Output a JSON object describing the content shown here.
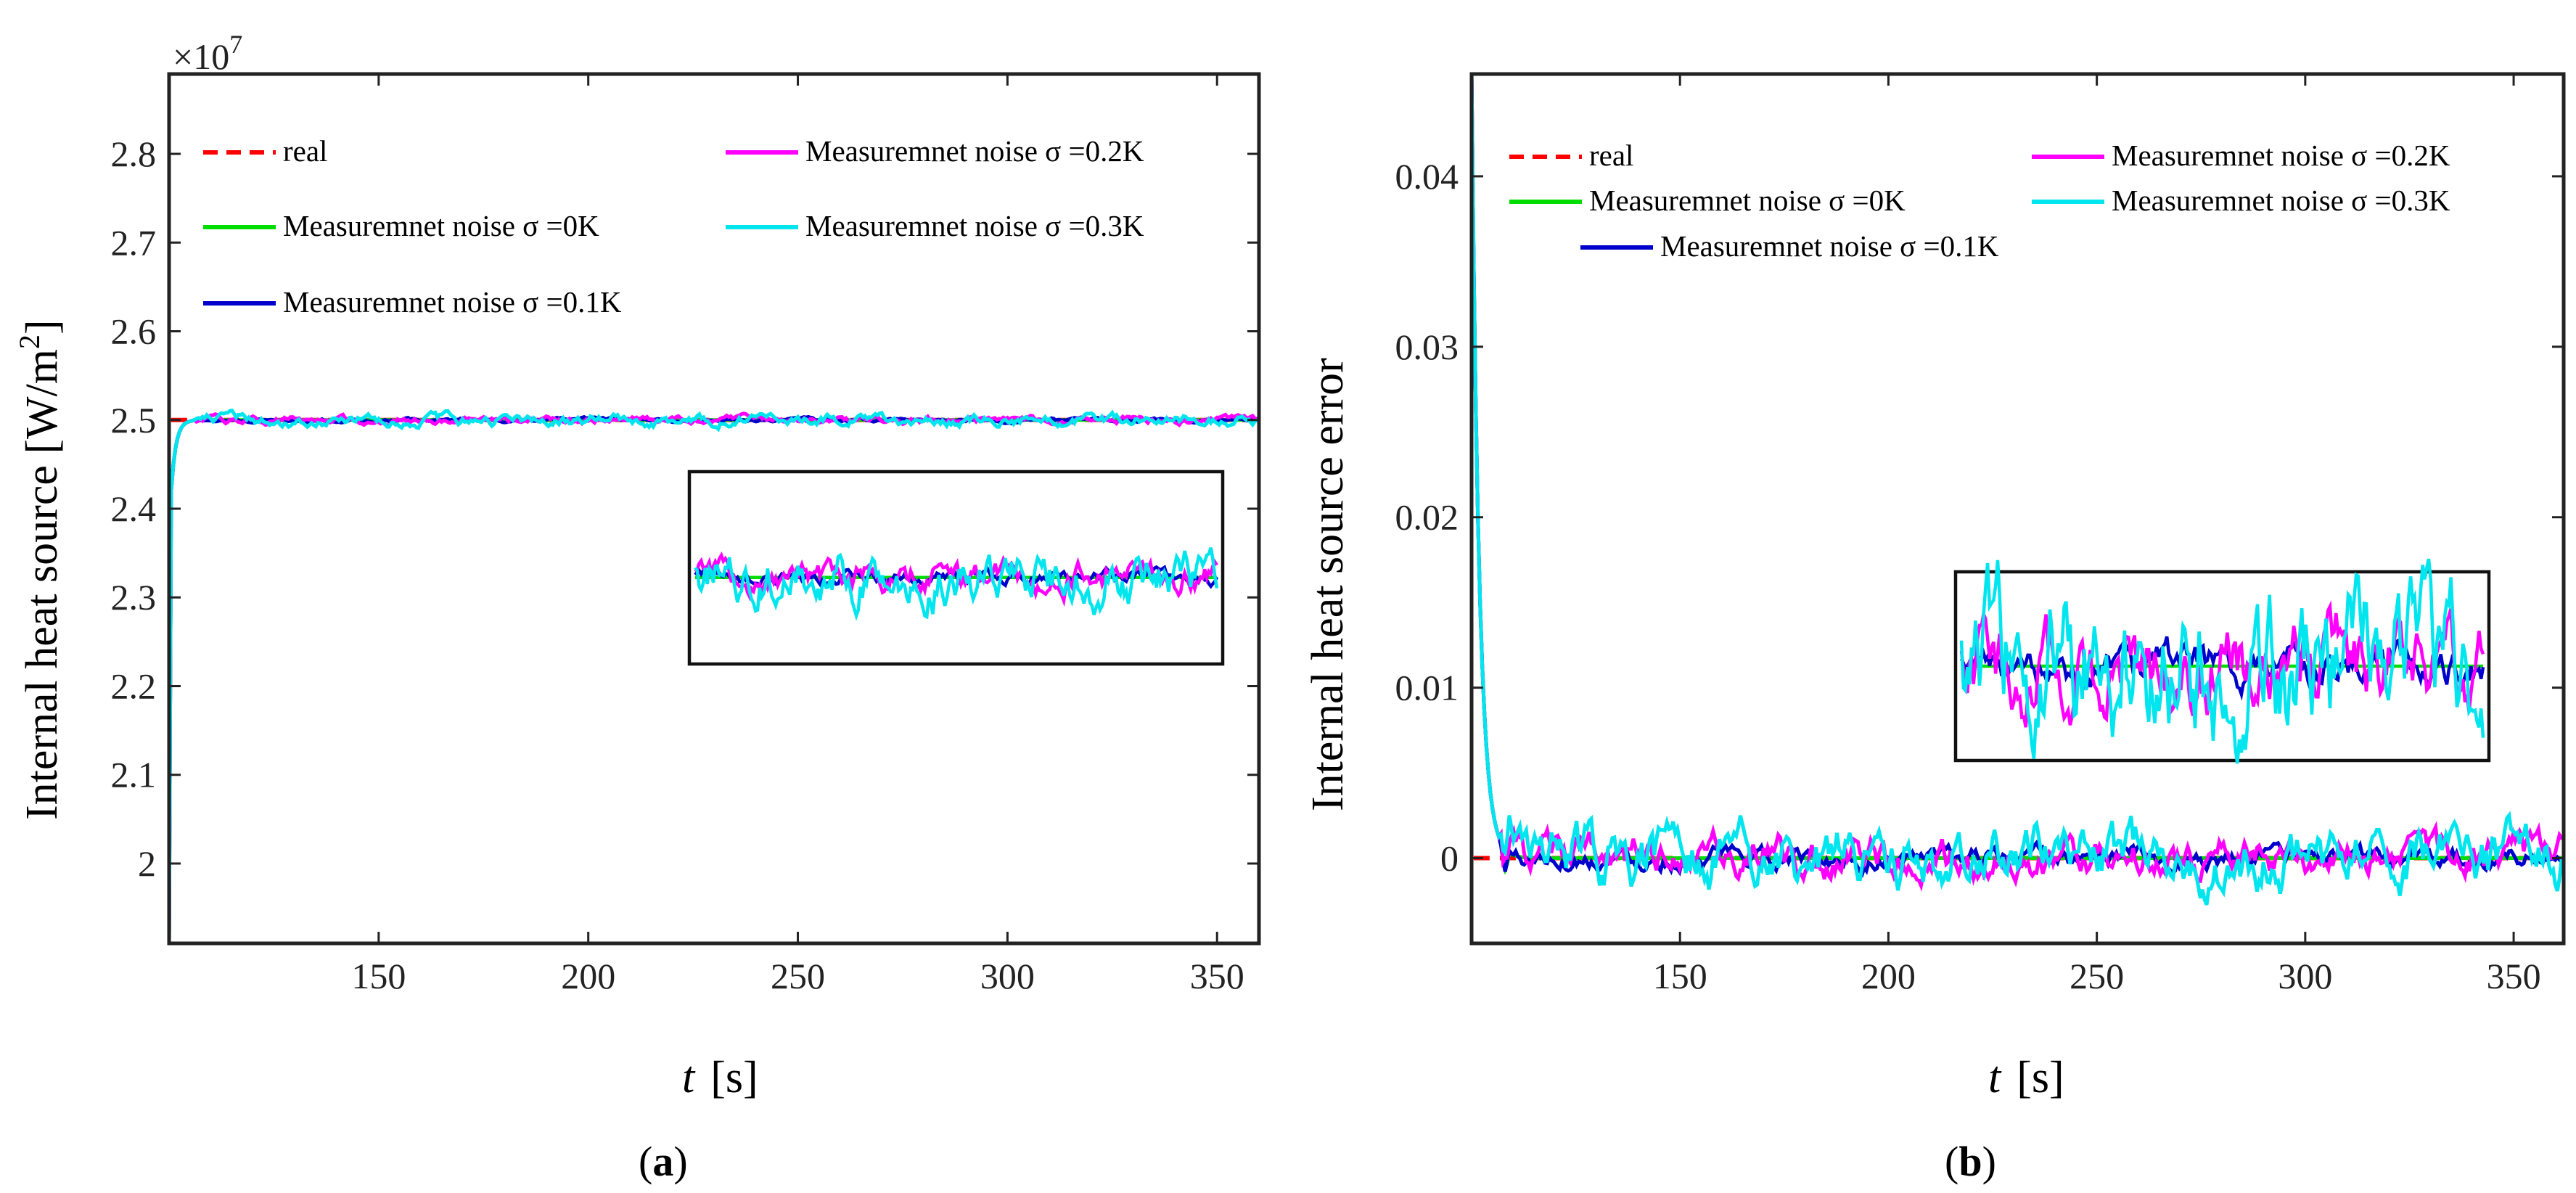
{
  "figure": {
    "panels": [
      {
        "label_open": "(",
        "label_letter": "a",
        "label_close": ")"
      },
      {
        "label_open": "(",
        "label_letter": "b",
        "label_close": ")"
      }
    ]
  },
  "chart_data": [
    {
      "type": "line",
      "panel": "a",
      "title": "",
      "xlabel_var": "t",
      "xlabel_unit": "[s]",
      "ylabel": "Internal heat source [W/m",
      "ylabel_sup": "2",
      "ylabel_close": "]",
      "y_multiplier_base": "×10",
      "y_multiplier_exp": "7",
      "xlim": [
        100,
        360
      ],
      "ylim": [
        1.91,
        2.89
      ],
      "xticks": [
        150,
        200,
        250,
        300,
        350
      ],
      "xtick_labels": [
        "150",
        "200",
        "250",
        "300",
        "350"
      ],
      "yticks": [
        2.0,
        2.1,
        2.2,
        2.3,
        2.4,
        2.5,
        2.6,
        2.7,
        2.8
      ],
      "ytick_labels": [
        "2",
        "2.1",
        "2.2",
        "2.3",
        "2.4",
        "2.5",
        "2.6",
        "2.7",
        "2.8"
      ],
      "grid": false,
      "legend_placement": "top",
      "series": [
        {
          "name": "real",
          "color": "#ff0000",
          "dash": true,
          "values_desc": "constant 2.5 from t=100 to 360"
        },
        {
          "name": "Measuremnet noise σ =0K",
          "color": "#00dd00",
          "start": 1.91,
          "steady": 2.5,
          "noise": 0.0
        },
        {
          "name": "Measuremnet noise σ =0.1K",
          "color": "#0000cc",
          "start": 1.91,
          "steady": 2.5,
          "noise": 0.0015
        },
        {
          "name": "Measuremnet noise σ =0.2K",
          "color": "#ff00ff",
          "start": 1.91,
          "steady": 2.5,
          "noise": 0.003
        },
        {
          "name": "Measuremnet noise σ =0.3K",
          "color": "#00e5ee",
          "start": 1.91,
          "steady": 2.5,
          "noise": 0.0045
        }
      ],
      "legend": [
        {
          "text": "real",
          "color": "#ff0000",
          "dash": true
        },
        {
          "text": "Measuremnet noise σ =0.2K",
          "color": "#ff00ff",
          "dash": false
        },
        {
          "text": "Measuremnet noise σ =0K",
          "color": "#00dd00",
          "dash": false
        },
        {
          "text": "Measuremnet noise σ =0.3K",
          "color": "#00e5ee",
          "dash": false
        },
        {
          "text": "Measuremnet noise σ =0.1K",
          "color": "#0000cc",
          "dash": false
        }
      ]
    },
    {
      "type": "line",
      "panel": "b",
      "title": "",
      "xlabel_var": "t",
      "xlabel_unit": "[s]",
      "ylabel": "Internal heat source error",
      "xlim": [
        100,
        362
      ],
      "ylim": [
        -0.005,
        0.046
      ],
      "xticks": [
        150,
        200,
        250,
        300,
        350
      ],
      "xtick_labels": [
        "150",
        "200",
        "250",
        "300",
        "350"
      ],
      "yticks": [
        0,
        0.01,
        0.02,
        0.03,
        0.04
      ],
      "ytick_labels": [
        "0",
        "0.01",
        "0.02",
        "0.03",
        "0.04"
      ],
      "grid": false,
      "legend_placement": "top",
      "series": [
        {
          "name": "real",
          "color": "#ff0000",
          "dash": true,
          "values_desc": "constant 0"
        },
        {
          "name": "Measuremnet noise σ =0K",
          "color": "#00dd00",
          "start": 0.046,
          "steady": 0.0,
          "noise": 0.0
        },
        {
          "name": "Measuremnet noise σ =0.1K",
          "color": "#0000cc",
          "start": 0.046,
          "steady": 0.0,
          "noise": 0.0004
        },
        {
          "name": "Measuremnet noise σ =0.2K",
          "color": "#ff00ff",
          "start": 0.046,
          "steady": 0.0,
          "noise": 0.0008
        },
        {
          "name": "Measuremnet noise σ =0.3K",
          "color": "#00e5ee",
          "start": 0.046,
          "steady": 0.0,
          "noise": 0.0012
        }
      ],
      "legend": [
        {
          "text": "real",
          "color": "#ff0000",
          "dash": true
        },
        {
          "text": "Measuremnet noise σ =0.2K",
          "color": "#ff00ff",
          "dash": false
        },
        {
          "text": "Measuremnet noise σ =0K",
          "color": "#00dd00",
          "dash": false
        },
        {
          "text": "Measuremnet noise σ =0.3K",
          "color": "#00e5ee",
          "dash": false
        },
        {
          "text": "Measuremnet noise σ =0.1K",
          "color": "#0000cc",
          "dash": false
        }
      ]
    }
  ]
}
